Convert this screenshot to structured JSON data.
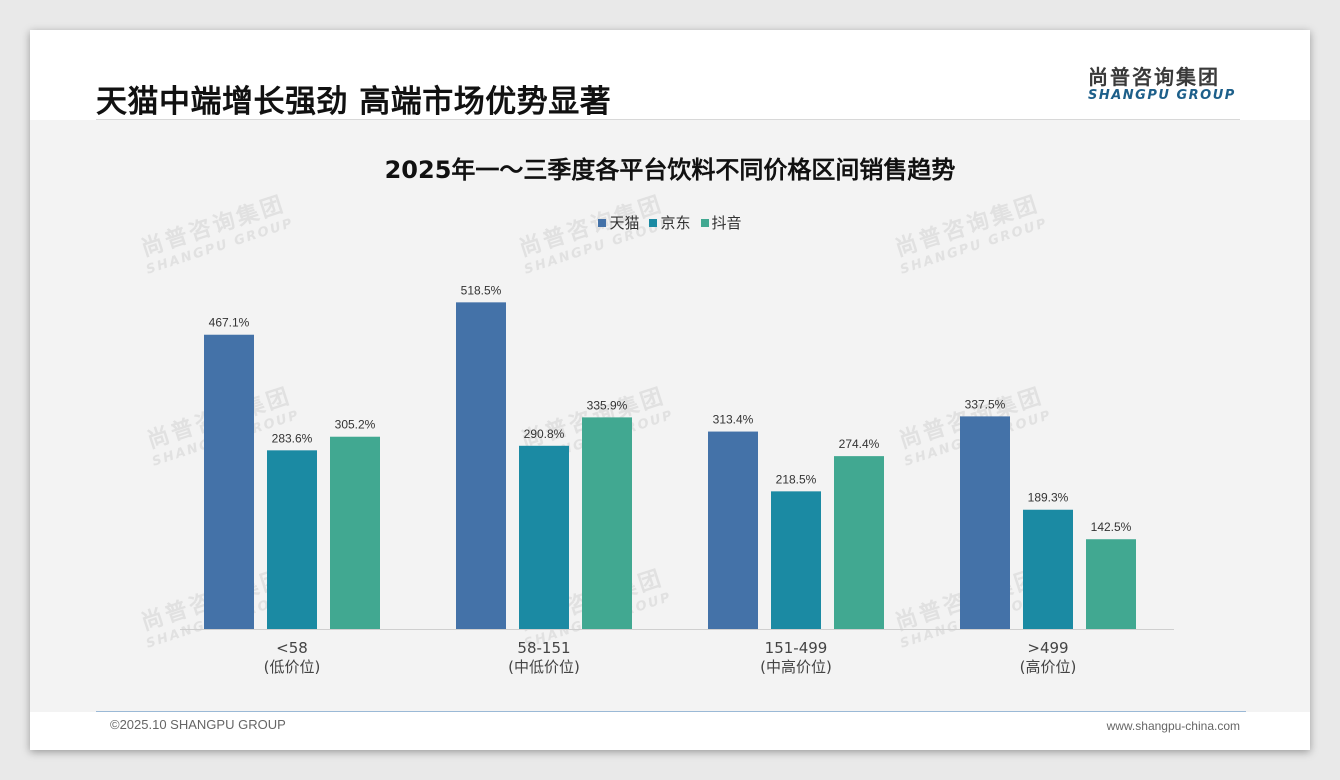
{
  "page": {
    "title": "天猫中端增长强劲 高端市场优势显著",
    "logo_cn": "尚普咨询集团",
    "logo_en": "SHANGPU GROUP",
    "watermark_cn": "尚普咨询集团",
    "watermark_en": "SHANGPU GROUP",
    "footer_left": "©2025.10 SHANGPU GROUP",
    "footer_right": "www.shangpu-china.com"
  },
  "chart_data": {
    "type": "bar",
    "title": "2025年一～三季度各平台饮料不同价格区间销售趋势",
    "categories": [
      {
        "label": "<58",
        "sublabel": "(低价位)"
      },
      {
        "label": "58-151",
        "sublabel": "(中低价位)"
      },
      {
        "label": "151-499",
        "sublabel": "(中高价位)"
      },
      {
        "label": ">499",
        "sublabel": "(高价位)"
      }
    ],
    "series": [
      {
        "name": "天猫",
        "color": "#4472a8",
        "values": [
          467.1,
          518.5,
          313.4,
          337.5
        ],
        "labels": [
          "467.1%",
          "518.5%",
          "313.4%",
          "337.5%"
        ]
      },
      {
        "name": "京东",
        "color": "#1b8aa3",
        "values": [
          283.6,
          290.8,
          218.5,
          189.3
        ],
        "labels": [
          "283.6%",
          "290.8%",
          "218.5%",
          "189.3%"
        ]
      },
      {
        "name": "抖音",
        "color": "#41a891",
        "values": [
          305.2,
          335.9,
          274.4,
          142.5
        ],
        "labels": [
          "305.2%",
          "335.9%",
          "274.4%",
          "142.5%"
        ]
      }
    ],
    "ylim": [
      0,
      600
    ],
    "xlabel": "",
    "ylabel": "",
    "legend_position": "top-center",
    "grid": false
  }
}
